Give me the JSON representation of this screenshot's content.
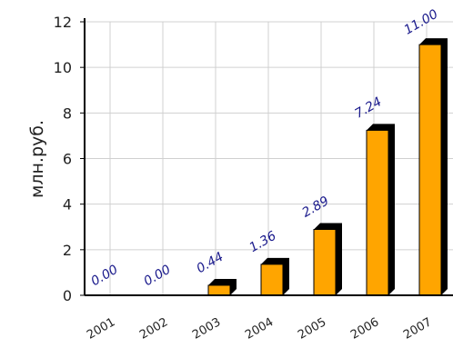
{
  "chart_data": {
    "type": "bar",
    "categories": [
      "2001",
      "2002",
      "2003",
      "2004",
      "2005",
      "2006",
      "2007"
    ],
    "values": [
      0.0,
      0.0,
      0.44,
      1.36,
      2.89,
      7.24,
      11.0
    ],
    "value_labels": [
      "0.00",
      "0.00",
      "0.44",
      "1.36",
      "2.89",
      "7.24",
      "11.00"
    ],
    "title": "",
    "xlabel": "",
    "ylabel": "млн.руб.",
    "ylim": [
      0,
      12
    ],
    "yticks": [
      0,
      2,
      4,
      6,
      8,
      10,
      12
    ],
    "grid": true,
    "legend": "none",
    "colors": {
      "bar": "#FFA500",
      "bar_shadow": "#000000",
      "data_label": "#1A1A8C",
      "grid": "#D0D0D0",
      "axis": "#000000"
    }
  }
}
